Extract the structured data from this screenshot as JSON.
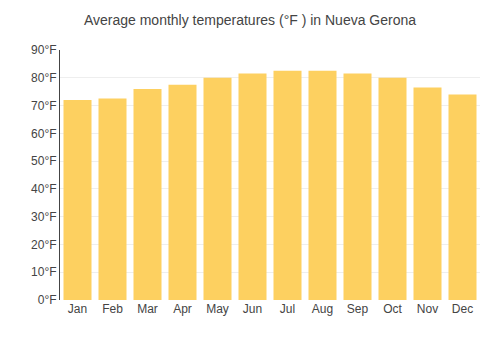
{
  "chart_data": {
    "type": "bar",
    "title": "Average monthly temperatures (°F ) in Nueva Gerona",
    "categories": [
      "Jan",
      "Feb",
      "Mar",
      "Apr",
      "May",
      "Jun",
      "Jul",
      "Aug",
      "Sep",
      "Oct",
      "Nov",
      "Dec"
    ],
    "values": [
      72,
      72.5,
      76,
      77.5,
      80,
      81.5,
      82.5,
      82.5,
      81.5,
      80,
      76.5,
      74
    ],
    "color": "#FDD060",
    "ylim": [
      0,
      90
    ],
    "yticks": [
      {
        "value": 0,
        "label": "0°F"
      },
      {
        "value": 10,
        "label": "10°F"
      },
      {
        "value": 20,
        "label": "20°F"
      },
      {
        "value": 30,
        "label": "30°F"
      },
      {
        "value": 40,
        "label": "40°F"
      },
      {
        "value": 50,
        "label": "50°F"
      },
      {
        "value": 60,
        "label": "60°F"
      },
      {
        "value": 70,
        "label": "70°F"
      },
      {
        "value": 80,
        "label": "80°F"
      },
      {
        "value": 90,
        "label": "90°F"
      }
    ],
    "grid": true
  }
}
